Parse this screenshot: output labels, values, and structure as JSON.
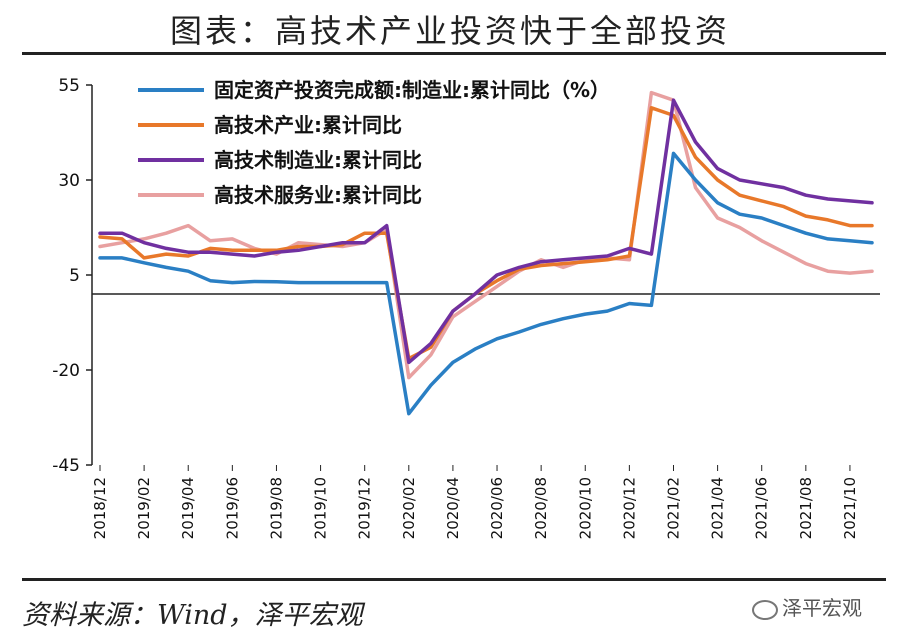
{
  "title": "图表：高技术产业投资快于全部投资",
  "source": "资料来源：Wind，泽平宏观",
  "brand": "泽平宏观",
  "chart_data": {
    "type": "line",
    "ylim": [
      -45,
      55
    ],
    "yticks": [
      55,
      30,
      5,
      -20,
      -45
    ],
    "baseline": 0,
    "x": [
      "2018/12",
      "2019/01",
      "2019/02",
      "2019/03",
      "2019/04",
      "2019/05",
      "2019/06",
      "2019/07",
      "2019/08",
      "2019/09",
      "2019/10",
      "2019/11",
      "2019/12",
      "2020/01",
      "2020/02",
      "2020/03",
      "2020/04",
      "2020/05",
      "2020/06",
      "2020/07",
      "2020/08",
      "2020/09",
      "2020/10",
      "2020/11",
      "2020/12",
      "2021/01",
      "2021/02",
      "2021/03",
      "2021/04",
      "2021/05",
      "2021/06",
      "2021/07",
      "2021/08",
      "2021/09",
      "2021/10",
      "2021/11"
    ],
    "xticks": [
      "2018/12",
      "2019/02",
      "2019/04",
      "2019/06",
      "2019/08",
      "2019/10",
      "2019/12",
      "2020/02",
      "2020/04",
      "2020/06",
      "2020/08",
      "2020/10",
      "2020/12",
      "2021/02",
      "2021/04",
      "2021/06",
      "2021/08",
      "2021/10"
    ],
    "series": [
      {
        "name": "固定资产投资完成额:制造业:累计同比（%）",
        "color": "#2a7fc4",
        "values": [
          9.5,
          9.5,
          8.2,
          7.0,
          6.0,
          3.5,
          3.0,
          3.3,
          3.2,
          3.0,
          3.0,
          3.0,
          3.0,
          3.0,
          -31.5,
          -24.0,
          -18.0,
          -14.5,
          -11.8,
          -10.0,
          -8.0,
          -6.5,
          -5.3,
          -4.5,
          -2.5,
          -3.0,
          37.0,
          30.0,
          24.0,
          21.0,
          20.0,
          18.0,
          16.0,
          14.5,
          14.0,
          13.5
        ]
      },
      {
        "name": "高技术产业:累计同比",
        "color": "#e8782a",
        "values": [
          15.0,
          14.5,
          9.5,
          10.5,
          10.0,
          12.0,
          11.5,
          11.5,
          11.5,
          12.5,
          12.5,
          13.0,
          16.0,
          16.0,
          -17.0,
          -14.0,
          -4.5,
          0.0,
          3.5,
          6.5,
          7.5,
          8.0,
          8.5,
          9.0,
          10.0,
          49.0,
          47.0,
          36.0,
          30.0,
          26.0,
          24.5,
          23.0,
          20.5,
          19.5,
          18.0,
          18.0
        ]
      },
      {
        "name": "高技术制造业:累计同比",
        "color": "#7030a0",
        "values": [
          16.0,
          16.0,
          13.5,
          12.0,
          11.0,
          11.0,
          10.5,
          10.0,
          11.0,
          11.5,
          12.5,
          13.5,
          13.5,
          18.0,
          -18.0,
          -13.0,
          -4.5,
          0.0,
          5.0,
          7.0,
          8.5,
          9.0,
          9.5,
          10.0,
          12.0,
          10.5,
          51.0,
          40.0,
          33.0,
          30.0,
          29.0,
          28.0,
          26.0,
          25.0,
          24.5,
          24.0
        ]
      },
      {
        "name": "高技术服务业:累计同比",
        "color": "#e8a0a0",
        "values": [
          12.5,
          13.5,
          14.5,
          16.0,
          18.0,
          14.0,
          14.5,
          12.0,
          10.5,
          13.5,
          13.0,
          12.5,
          13.5,
          17.0,
          -22.0,
          -16.0,
          -6.0,
          -2.0,
          2.0,
          6.0,
          9.0,
          7.0,
          9.0,
          9.5,
          9.0,
          53.0,
          51.0,
          28.0,
          20.0,
          17.5,
          14.0,
          11.0,
          8.0,
          6.0,
          5.5,
          6.0
        ]
      }
    ]
  }
}
